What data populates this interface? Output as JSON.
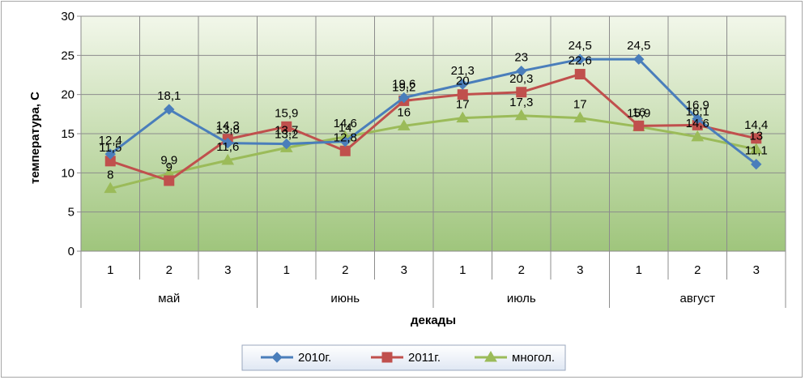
{
  "chart_data": {
    "type": "line",
    "title": "",
    "xlabel": "декады",
    "ylabel": "температура, С",
    "ylim": [
      0,
      30
    ],
    "yticks": [
      "0",
      "5",
      "10",
      "15",
      "20",
      "25",
      "30"
    ],
    "grid": true,
    "legend_position": "bottom",
    "categories": [
      "1",
      "2",
      "3",
      "1",
      "2",
      "3",
      "1",
      "2",
      "3",
      "1",
      "2",
      "3"
    ],
    "groups": [
      "май",
      "июнь",
      "июль",
      "август"
    ],
    "series": [
      {
        "name": "2010г.",
        "color": "#4a7ebb",
        "marker": "diamond",
        "values": [
          12.4,
          18.1,
          13.8,
          13.7,
          14.0,
          19.6,
          21.3,
          23,
          24.5,
          24.5,
          16.9,
          11.1
        ],
        "labels": [
          "12,4",
          "18,1",
          "13,8",
          "13,7",
          "14",
          "19,6",
          "21,3",
          "23",
          "24,5",
          "24,5",
          "16,9",
          "11,1"
        ]
      },
      {
        "name": "2011г.",
        "color": "#c0504d",
        "marker": "square",
        "values": [
          11.5,
          9,
          14.3,
          15.9,
          12.8,
          19.2,
          20,
          20.3,
          22.6,
          16,
          16.1,
          14.4
        ],
        "labels": [
          "11,5",
          "9",
          "14,3",
          "15,9",
          "12,8",
          "19,2",
          "20",
          "20,3",
          "22,6",
          "16",
          "16,1",
          "14,4"
        ]
      },
      {
        "name": "многол.",
        "color": "#9bbb59",
        "marker": "triangle",
        "values": [
          8,
          9.9,
          11.6,
          13.2,
          14.6,
          16,
          17,
          17.3,
          17,
          15.9,
          14.6,
          13
        ],
        "labels": [
          "8",
          "9,9",
          "11,6",
          "13,2",
          "14,6",
          "16",
          "17",
          "17,3",
          "17",
          "15,9",
          "14,6",
          "13"
        ]
      }
    ]
  }
}
